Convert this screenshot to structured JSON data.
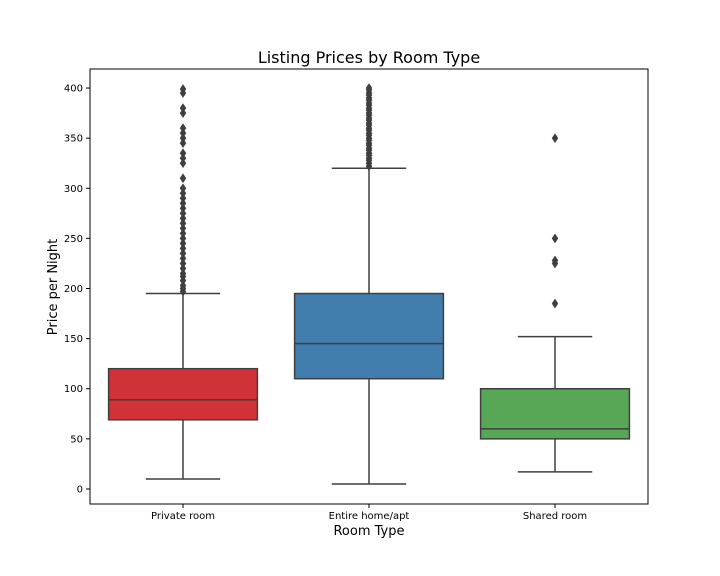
{
  "chart_data": {
    "type": "box",
    "title": "Listing Prices by Room Type",
    "xlabel": "Room Type",
    "ylabel": "Price per Night",
    "categories": [
      "Private room",
      "Entire home/apt",
      "Shared room"
    ],
    "ylim": [
      -15,
      419
    ],
    "yticks": [
      0,
      50,
      100,
      150,
      200,
      250,
      300,
      350,
      400
    ],
    "grid": false,
    "series": [
      {
        "category": "Private room",
        "color": "#d03237",
        "whisker_low": 10,
        "q1": 69,
        "median": 89,
        "q3": 120,
        "whisker_high": 195,
        "outliers": [
          197,
          200,
          203,
          208,
          212,
          215,
          220,
          225,
          230,
          235,
          240,
          245,
          250,
          255,
          260,
          265,
          270,
          275,
          280,
          285,
          290,
          295,
          300,
          310,
          325,
          330,
          335,
          345,
          350,
          355,
          360,
          375,
          380,
          395,
          399
        ]
      },
      {
        "category": "Entire home/apt",
        "color": "#417dad",
        "whisker_low": 5,
        "q1": 110,
        "median": 145,
        "q3": 195,
        "whisker_high": 320,
        "outliers": [
          322,
          325,
          328,
          330,
          333,
          335,
          338,
          340,
          343,
          345,
          348,
          350,
          353,
          355,
          358,
          360,
          363,
          365,
          368,
          370,
          373,
          375,
          378,
          380,
          383,
          385,
          388,
          390,
          393,
          395,
          398,
          400
        ]
      },
      {
        "category": "Shared room",
        "color": "#57a756",
        "whisker_low": 17,
        "q1": 50,
        "median": 60,
        "q3": 100,
        "whisker_high": 152,
        "outliers": [
          185,
          225,
          228,
          250,
          350
        ]
      }
    ]
  }
}
